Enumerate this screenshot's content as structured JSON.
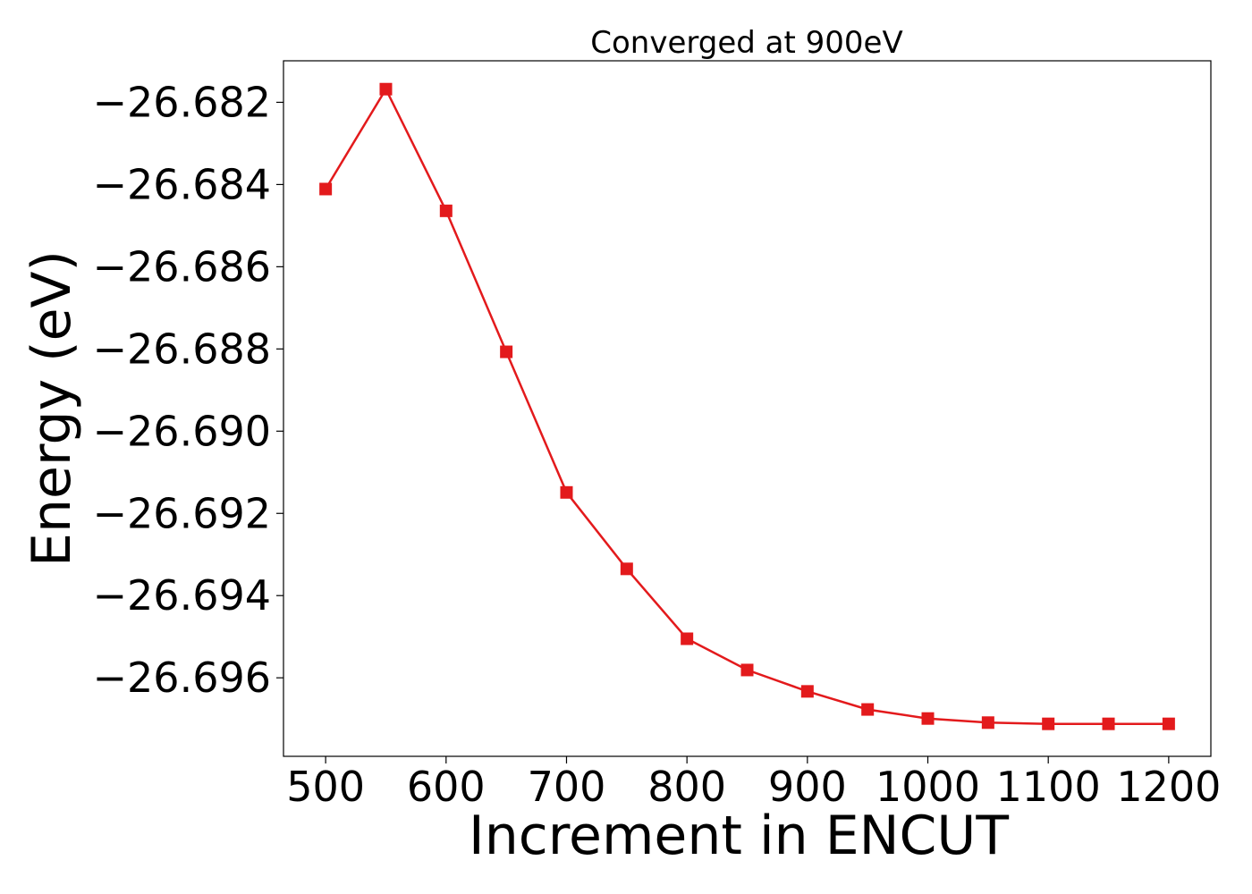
{
  "chart_data": {
    "type": "line",
    "title": "Converged at 900eV",
    "xlabel": "Increment in ENCUT",
    "ylabel": "Energy (eV)",
    "xlim": [
      465,
      1235
    ],
    "ylim": [
      -26.69791,
      -26.68099
    ],
    "xticks": [
      500,
      600,
      700,
      800,
      900,
      1000,
      1100,
      1200
    ],
    "xtick_labels": [
      "500",
      "600",
      "700",
      "800",
      "900",
      "1000",
      "1100",
      "1200"
    ],
    "yticks": [
      -26.682,
      -26.684,
      -26.686,
      -26.688,
      -26.69,
      -26.692,
      -26.694,
      -26.696
    ],
    "ytick_labels": [
      "−26.682",
      "−26.684",
      "−26.686",
      "−26.688",
      "−26.690",
      "−26.692",
      "−26.694",
      "−26.696"
    ],
    "grid": false,
    "series": [
      {
        "color": "#e31a1c",
        "marker": "square",
        "x": [
          500,
          550,
          600,
          650,
          700,
          750,
          800,
          850,
          900,
          950,
          1000,
          1050,
          1100,
          1150,
          1200
        ],
        "y": [
          -26.68411,
          -26.68168,
          -26.68464,
          -26.68807,
          -26.69149,
          -26.69335,
          -26.69505,
          -26.69581,
          -26.69633,
          -26.69677,
          -26.69699,
          -26.69709,
          -26.69712,
          -26.69712,
          -26.69712
        ]
      }
    ]
  }
}
